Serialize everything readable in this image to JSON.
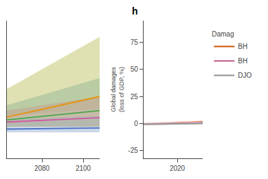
{
  "chart_data": [
    {
      "type": "area",
      "x": [
        2063,
        2108
      ],
      "xlim": [
        2063,
        2108
      ],
      "xticks": [
        2080,
        2100
      ],
      "ylim": [
        -32,
        95
      ],
      "tick_labels": "x",
      "grid": false,
      "series": [
        {
          "color": "#dfe1b2",
          "lower": [
            -3,
            -3
          ],
          "upper": [
            32,
            80
          ]
        },
        {
          "color": "#bacca3",
          "lower": [
            -3,
            -3
          ],
          "upper": [
            17,
            42
          ]
        },
        {
          "color": "#c0b49a",
          "lower": [
            -3,
            -3
          ],
          "upper": [
            12,
            25
          ]
        },
        {
          "color": "#c5bba8",
          "lower": [
            -3,
            -3
          ],
          "upper": [
            7,
            14
          ]
        },
        {
          "color": "#b5b8ae",
          "lower": [
            -3,
            -3
          ],
          "upper": [
            4,
            7
          ]
        },
        {
          "color": "#ccd8ea",
          "lower": [
            -8,
            -8
          ],
          "upper": [
            -3,
            -3
          ]
        },
        {
          "color": "#e8920a",
          "values": [
            6.0,
            25
          ]
        },
        {
          "color": "#48a848",
          "values": [
            3.5,
            12
          ]
        },
        {
          "color": "#d058a0",
          "values": [
            1.5,
            5.5
          ]
        },
        {
          "color": "#4870c8",
          "values": [
            -5,
            -4
          ]
        }
      ]
    },
    {
      "type": "line",
      "title": "h",
      "ylabel": "Global damages\n(loss of GDP, %)",
      "x": [
        2012,
        2026
      ],
      "xlim": [
        2012,
        2026
      ],
      "xticks": [
        2020
      ],
      "ylim": [
        -32,
        95
      ],
      "yticks": [
        -25,
        0,
        25,
        50,
        75
      ],
      "grid": false,
      "legend": "right",
      "legend_title": "Damag",
      "series": [
        {
          "name": "BH",
          "color": "#cc5500",
          "fill_color": "#f0c8a8",
          "values": [
            -0.5,
            1.5
          ],
          "lower": [
            -1.7,
            0.3
          ],
          "upper": [
            0.7,
            2.7
          ]
        },
        {
          "name": "BH",
          "color": "#c05888",
          "fill_color": "#f0b0d0",
          "values": [
            -0.5,
            0.8
          ],
          "lower": [
            -1.5,
            -0.2
          ],
          "upper": [
            0.5,
            1.8
          ]
        },
        {
          "name": "DJO",
          "color": "#909090",
          "fill_color": "#d0d0d0",
          "values": [
            -0.5,
            0.2
          ],
          "lower": [
            -1.3,
            -0.6
          ],
          "upper": [
            0.3,
            1.0
          ]
        }
      ]
    }
  ]
}
